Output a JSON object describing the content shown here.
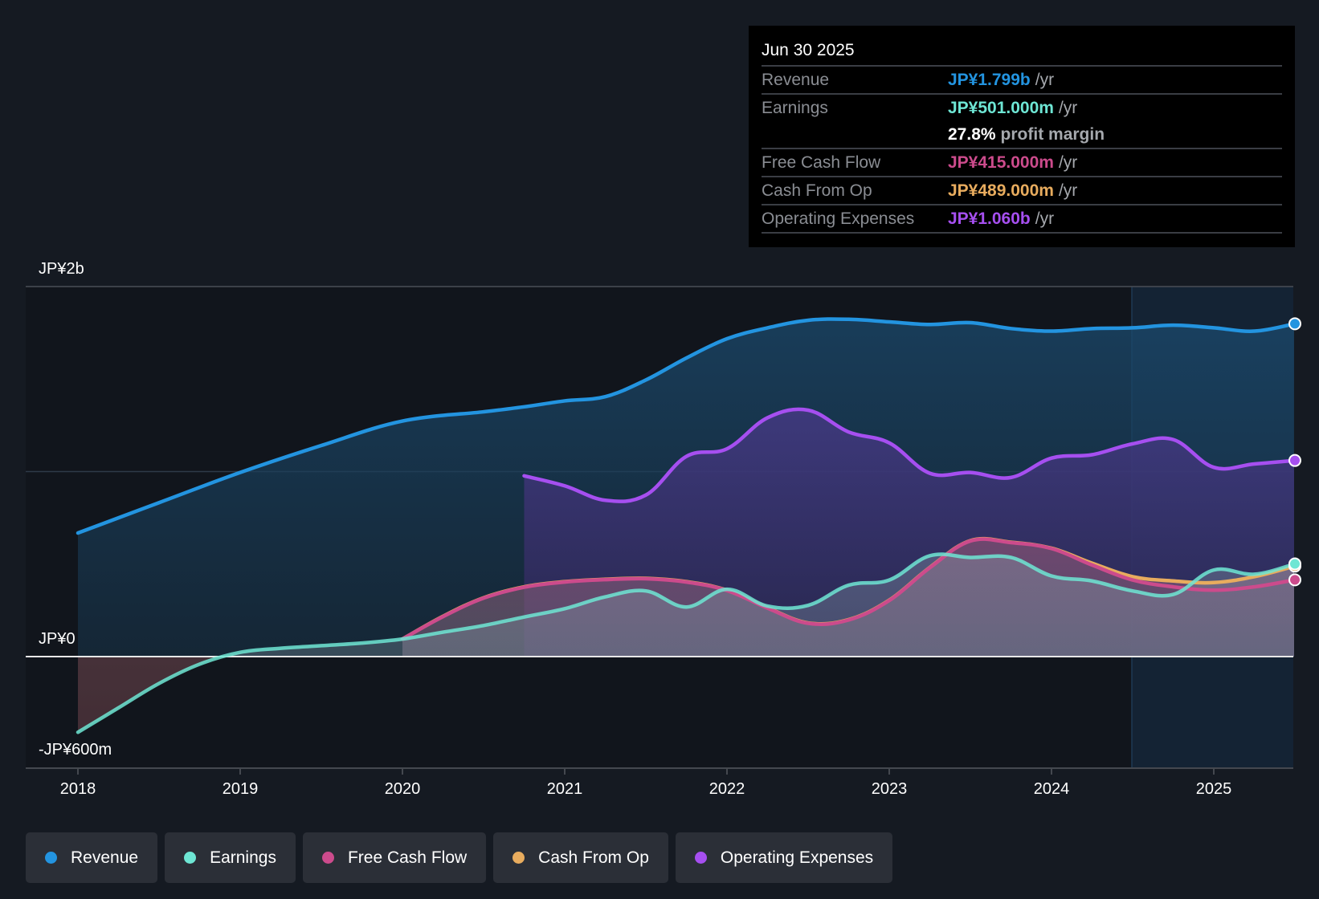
{
  "tooltip": {
    "date": "Jun 30 2025",
    "rows": [
      {
        "label": "Revenue",
        "value": "JP¥1.799b",
        "unit": "/yr",
        "color": "#2394e0"
      },
      {
        "label": "Earnings",
        "value": "JP¥501.000m",
        "unit": "/yr",
        "color": "#6ee6d4"
      },
      {
        "label": "",
        "value": "27.8%",
        "unit": "profit margin",
        "color": "#ffffff"
      },
      {
        "label": "Free Cash Flow",
        "value": "JP¥415.000m",
        "unit": "/yr",
        "color": "#cc4b8c"
      },
      {
        "label": "Cash From Op",
        "value": "JP¥489.000m",
        "unit": "/yr",
        "color": "#e8ac5e"
      },
      {
        "label": "Operating Expenses",
        "value": "JP¥1.060b",
        "unit": "/yr",
        "color": "#a64ff0"
      }
    ]
  },
  "legend": [
    {
      "label": "Revenue",
      "color": "#2394e0"
    },
    {
      "label": "Earnings",
      "color": "#6ee6d4"
    },
    {
      "label": "Free Cash Flow",
      "color": "#cc4b8c"
    },
    {
      "label": "Cash From Op",
      "color": "#e8ac5e"
    },
    {
      "label": "Operating Expenses",
      "color": "#a64ff0"
    }
  ],
  "chart_data": {
    "type": "area",
    "title": "",
    "xlabel": "",
    "ylabel": "",
    "units": "JP¥ millions",
    "ylim": [
      -600,
      2000
    ],
    "xlim": [
      2018.0,
      2025.5
    ],
    "y_tick_labels": [
      {
        "value": 2000,
        "label": "JP¥2b"
      },
      {
        "value": 0,
        "label": "JP¥0"
      },
      {
        "value": -600,
        "label": "-JP¥600m"
      }
    ],
    "gridlines": [
      2000,
      1000,
      0
    ],
    "x_ticks": [
      2018,
      2019,
      2020,
      2021,
      2022,
      2023,
      2024,
      2025
    ],
    "x_tick_labels": [
      "2018",
      "2019",
      "2020",
      "2021",
      "2022",
      "2023",
      "2024",
      "2025"
    ],
    "highlight_region_start": 2024.5,
    "legend_position": "bottom",
    "series": [
      {
        "name": "Revenue",
        "color": "#2394e0",
        "x": [
          2018.0,
          2018.5,
          2019.0,
          2019.5,
          2020.0,
          2020.5,
          2020.75,
          2021.0,
          2021.25,
          2021.5,
          2021.75,
          2022.0,
          2022.25,
          2022.5,
          2022.75,
          2023.0,
          2023.25,
          2023.5,
          2023.75,
          2024.0,
          2024.25,
          2024.5,
          2024.75,
          2025.0,
          2025.25,
          2025.5
        ],
        "values": [
          668,
          832,
          995,
          1141,
          1273,
          1323,
          1350,
          1382,
          1405,
          1495,
          1614,
          1718,
          1777,
          1818,
          1823,
          1809,
          1795,
          1805,
          1773,
          1759,
          1773,
          1777,
          1791,
          1777,
          1759,
          1799
        ]
      },
      {
        "name": "Operating Expenses",
        "color": "#a64ff0",
        "x": [
          2020.75,
          2021.0,
          2021.25,
          2021.5,
          2021.75,
          2022.0,
          2022.25,
          2022.5,
          2022.75,
          2023.0,
          2023.25,
          2023.5,
          2023.75,
          2024.0,
          2024.25,
          2024.5,
          2024.75,
          2025.0,
          2025.25,
          2025.5
        ],
        "values": [
          977,
          923,
          845,
          873,
          1082,
          1123,
          1291,
          1332,
          1214,
          1155,
          991,
          995,
          968,
          1073,
          1091,
          1150,
          1173,
          1023,
          1041,
          1060
        ]
      },
      {
        "name": "Cash From Op",
        "color": "#e8ac5e",
        "x": [
          2020.0,
          2020.25,
          2020.5,
          2020.75,
          2021.0,
          2021.25,
          2021.5,
          2021.75,
          2022.0,
          2022.25,
          2022.5,
          2022.75,
          2023.0,
          2023.25,
          2023.5,
          2023.75,
          2024.0,
          2024.25,
          2024.5,
          2024.75,
          2025.0,
          2025.25,
          2025.5
        ],
        "values": [
          95,
          218,
          318,
          377,
          405,
          418,
          423,
          405,
          359,
          264,
          182,
          200,
          305,
          482,
          627,
          618,
          586,
          505,
          432,
          409,
          400,
          432,
          489
        ]
      },
      {
        "name": "Free Cash Flow",
        "color": "#cc4b8c",
        "x": [
          2020.0,
          2020.25,
          2020.5,
          2020.75,
          2021.0,
          2021.25,
          2021.5,
          2021.75,
          2022.0,
          2022.25,
          2022.5,
          2022.75,
          2023.0,
          2023.25,
          2023.5,
          2023.75,
          2024.0,
          2024.25,
          2024.5,
          2024.75,
          2025.0,
          2025.25,
          2025.5
        ],
        "values": [
          95,
          216,
          316,
          375,
          403,
          416,
          421,
          403,
          357,
          262,
          180,
          198,
          303,
          480,
          625,
          616,
          584,
          495,
          414,
          377,
          359,
          377,
          415
        ]
      },
      {
        "name": "Earnings",
        "color": "#6ee6d4",
        "x": [
          2018.0,
          2018.25,
          2018.5,
          2018.75,
          2019.0,
          2019.25,
          2019.5,
          2019.75,
          2020.0,
          2020.25,
          2020.5,
          2020.75,
          2021.0,
          2021.25,
          2021.5,
          2021.75,
          2022.0,
          2022.25,
          2022.5,
          2022.75,
          2023.0,
          2023.25,
          2023.5,
          2023.75,
          2024.0,
          2024.25,
          2024.5,
          2024.75,
          2025.0,
          2025.25,
          2025.5
        ],
        "values": [
          -409,
          -277,
          -145,
          -41,
          23,
          45,
          59,
          73,
          95,
          132,
          168,
          214,
          259,
          323,
          355,
          268,
          364,
          273,
          277,
          386,
          414,
          545,
          536,
          536,
          436,
          409,
          355,
          336,
          468,
          445,
          501
        ]
      }
    ]
  }
}
